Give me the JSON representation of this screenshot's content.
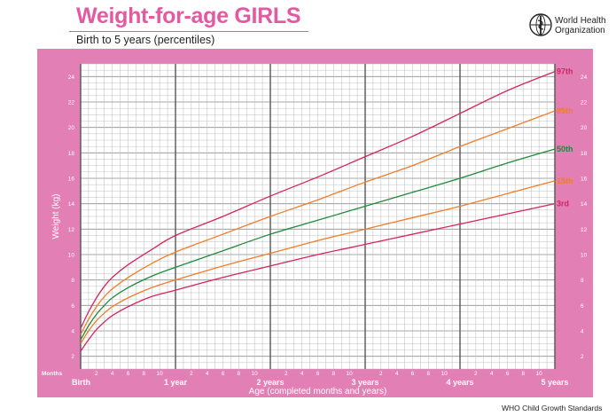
{
  "header": {
    "title": "Weight-for-age GIRLS",
    "subtitle": "Birth to 5 years (percentiles)",
    "org_line1": "World Health",
    "org_line2": "Organization",
    "logo_icon": "who-emblem-icon"
  },
  "footer": {
    "text": "WHO Child Growth Standards"
  },
  "colors": {
    "panel": "#e27fb4",
    "grid_minor": "#b9b9b9",
    "grid_major": "#555555",
    "pink": "#d1265f",
    "orange": "#f07d2a",
    "green": "#1f8a3c",
    "tick_text": "#ffffff"
  },
  "chart_data": {
    "type": "line",
    "title": "Weight-for-age GIRLS",
    "xlabel": "Age (completed months and years)",
    "ylabel": "Weight (kg)",
    "months_label": "Months",
    "xlim": [
      0,
      60
    ],
    "ylim": [
      1,
      25
    ],
    "y_ticks": [
      2,
      4,
      6,
      8,
      10,
      12,
      14,
      16,
      18,
      20,
      22,
      24
    ],
    "month_tick_labels": [
      "2",
      "4",
      "6",
      "8",
      "10"
    ],
    "year_labels": [
      {
        "month": 0,
        "label": "Birth"
      },
      {
        "month": 12,
        "label": "1 year"
      },
      {
        "month": 24,
        "label": "2 years"
      },
      {
        "month": 36,
        "label": "3 years"
      },
      {
        "month": 48,
        "label": "4 years"
      },
      {
        "month": 60,
        "label": "5 years"
      }
    ],
    "series": [
      {
        "name": "97th",
        "color_key": "pink",
        "points": [
          [
            0,
            4.2
          ],
          [
            1,
            5.5
          ],
          [
            2,
            6.6
          ],
          [
            3,
            7.5
          ],
          [
            4,
            8.2
          ],
          [
            6,
            9.2
          ],
          [
            9,
            10.4
          ],
          [
            12,
            11.5
          ],
          [
            18,
            13.0
          ],
          [
            24,
            14.6
          ],
          [
            30,
            16.1
          ],
          [
            36,
            17.7
          ],
          [
            42,
            19.3
          ],
          [
            48,
            21.1
          ],
          [
            54,
            22.9
          ],
          [
            60,
            24.4
          ]
        ]
      },
      {
        "name": "85th",
        "color_key": "orange",
        "points": [
          [
            0,
            3.7
          ],
          [
            1,
            4.9
          ],
          [
            2,
            5.9
          ],
          [
            3,
            6.7
          ],
          [
            4,
            7.3
          ],
          [
            6,
            8.2
          ],
          [
            9,
            9.3
          ],
          [
            12,
            10.2
          ],
          [
            18,
            11.6
          ],
          [
            24,
            13.0
          ],
          [
            30,
            14.3
          ],
          [
            36,
            15.7
          ],
          [
            42,
            17.0
          ],
          [
            48,
            18.5
          ],
          [
            54,
            19.9
          ],
          [
            60,
            21.3
          ]
        ]
      },
      {
        "name": "50th",
        "color_key": "green",
        "points": [
          [
            0,
            3.3
          ],
          [
            1,
            4.4
          ],
          [
            2,
            5.3
          ],
          [
            3,
            6.0
          ],
          [
            4,
            6.6
          ],
          [
            6,
            7.4
          ],
          [
            9,
            8.3
          ],
          [
            12,
            9.0
          ],
          [
            18,
            10.3
          ],
          [
            24,
            11.6
          ],
          [
            30,
            12.7
          ],
          [
            36,
            13.8
          ],
          [
            42,
            14.9
          ],
          [
            48,
            16.0
          ],
          [
            54,
            17.2
          ],
          [
            60,
            18.3
          ]
        ]
      },
      {
        "name": "15th",
        "color_key": "orange",
        "points": [
          [
            0,
            3.0
          ],
          [
            1,
            4.0
          ],
          [
            2,
            4.8
          ],
          [
            3,
            5.4
          ],
          [
            4,
            5.9
          ],
          [
            6,
            6.6
          ],
          [
            9,
            7.4
          ],
          [
            12,
            8.0
          ],
          [
            18,
            9.1
          ],
          [
            24,
            10.1
          ],
          [
            30,
            11.1
          ],
          [
            36,
            12.0
          ],
          [
            42,
            12.9
          ],
          [
            48,
            13.8
          ],
          [
            54,
            14.8
          ],
          [
            60,
            15.8
          ]
        ]
      },
      {
        "name": "3rd",
        "color_key": "pink",
        "points": [
          [
            0,
            2.4
          ],
          [
            1,
            3.3
          ],
          [
            2,
            4.1
          ],
          [
            3,
            4.7
          ],
          [
            4,
            5.2
          ],
          [
            6,
            5.9
          ],
          [
            9,
            6.7
          ],
          [
            12,
            7.2
          ],
          [
            18,
            8.2
          ],
          [
            24,
            9.1
          ],
          [
            30,
            10.0
          ],
          [
            36,
            10.8
          ],
          [
            42,
            11.6
          ],
          [
            48,
            12.4
          ],
          [
            54,
            13.2
          ],
          [
            60,
            14.0
          ]
        ]
      }
    ]
  }
}
